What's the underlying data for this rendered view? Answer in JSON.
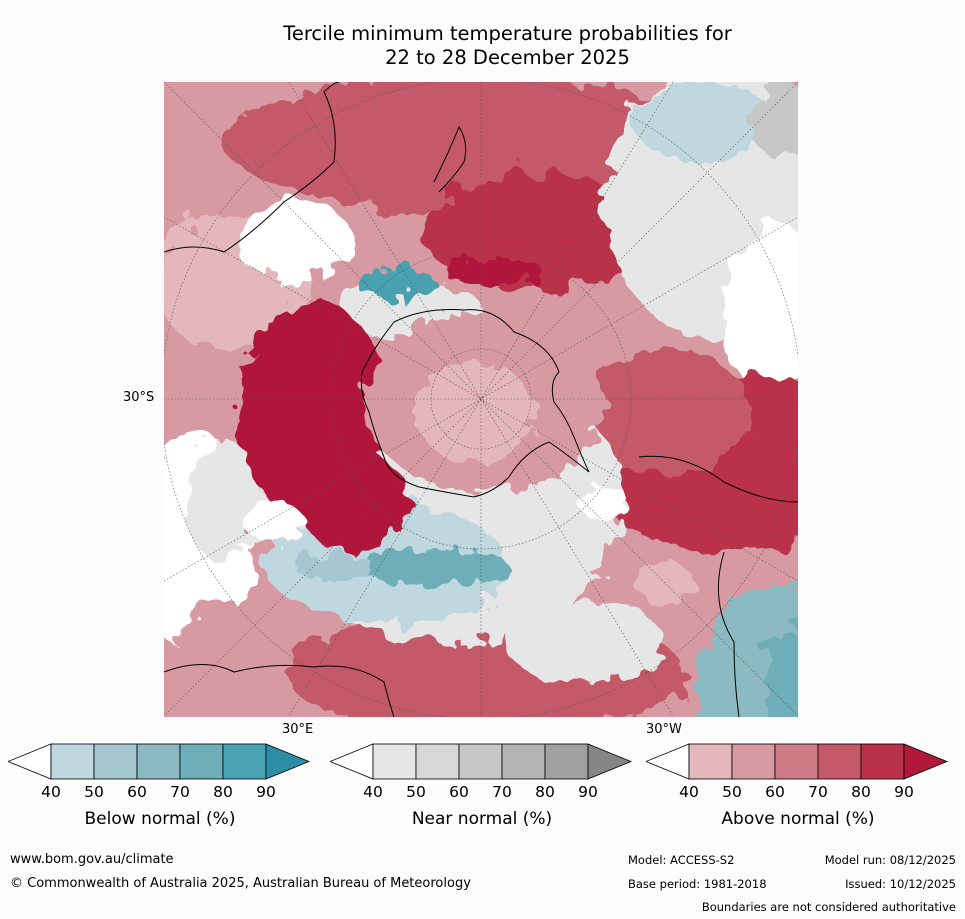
{
  "title": {
    "line1": "Tercile minimum temperature probabilities for",
    "line2": "22 to 28 December 2025"
  },
  "map": {
    "lat_label": "30°S",
    "lon_labels": [
      "30°E",
      "30°W"
    ]
  },
  "legends": [
    {
      "label": "Below normal (%)",
      "ticks": [
        "40",
        "50",
        "60",
        "70",
        "80",
        "90"
      ],
      "colors": [
        "#ffffff",
        "#bfd7de",
        "#a5c8d0",
        "#8bbac3",
        "#6daeb9",
        "#4aa1b0",
        "#2b8ea5"
      ]
    },
    {
      "label": "Near normal (%)",
      "ticks": [
        "40",
        "50",
        "60",
        "70",
        "80",
        "90"
      ],
      "colors": [
        "#ffffff",
        "#e6e6e6",
        "#d7d7d7",
        "#c7c7c7",
        "#b5b5b5",
        "#a1a1a1",
        "#858585"
      ]
    },
    {
      "label": "Above normal (%)",
      "ticks": [
        "40",
        "50",
        "60",
        "70",
        "80",
        "90"
      ],
      "colors": [
        "#ffffff",
        "#e3b7bc",
        "#d89aa2",
        "#cd7c86",
        "#c45a69",
        "#ba3249",
        "#b0193a"
      ]
    }
  ],
  "footer": {
    "website": "www.bom.gov.au/climate",
    "copyright": "© Commonwealth of Australia 2025, Australian Bureau of Meteorology",
    "model": "Model: ACCESS-S2",
    "model_run": "Model run: 08/12/2025",
    "base_period": "Base period: 1981-2018",
    "issued": "Issued: 10/12/2025",
    "disclaimer": "Boundaries are not considered authoritative"
  }
}
